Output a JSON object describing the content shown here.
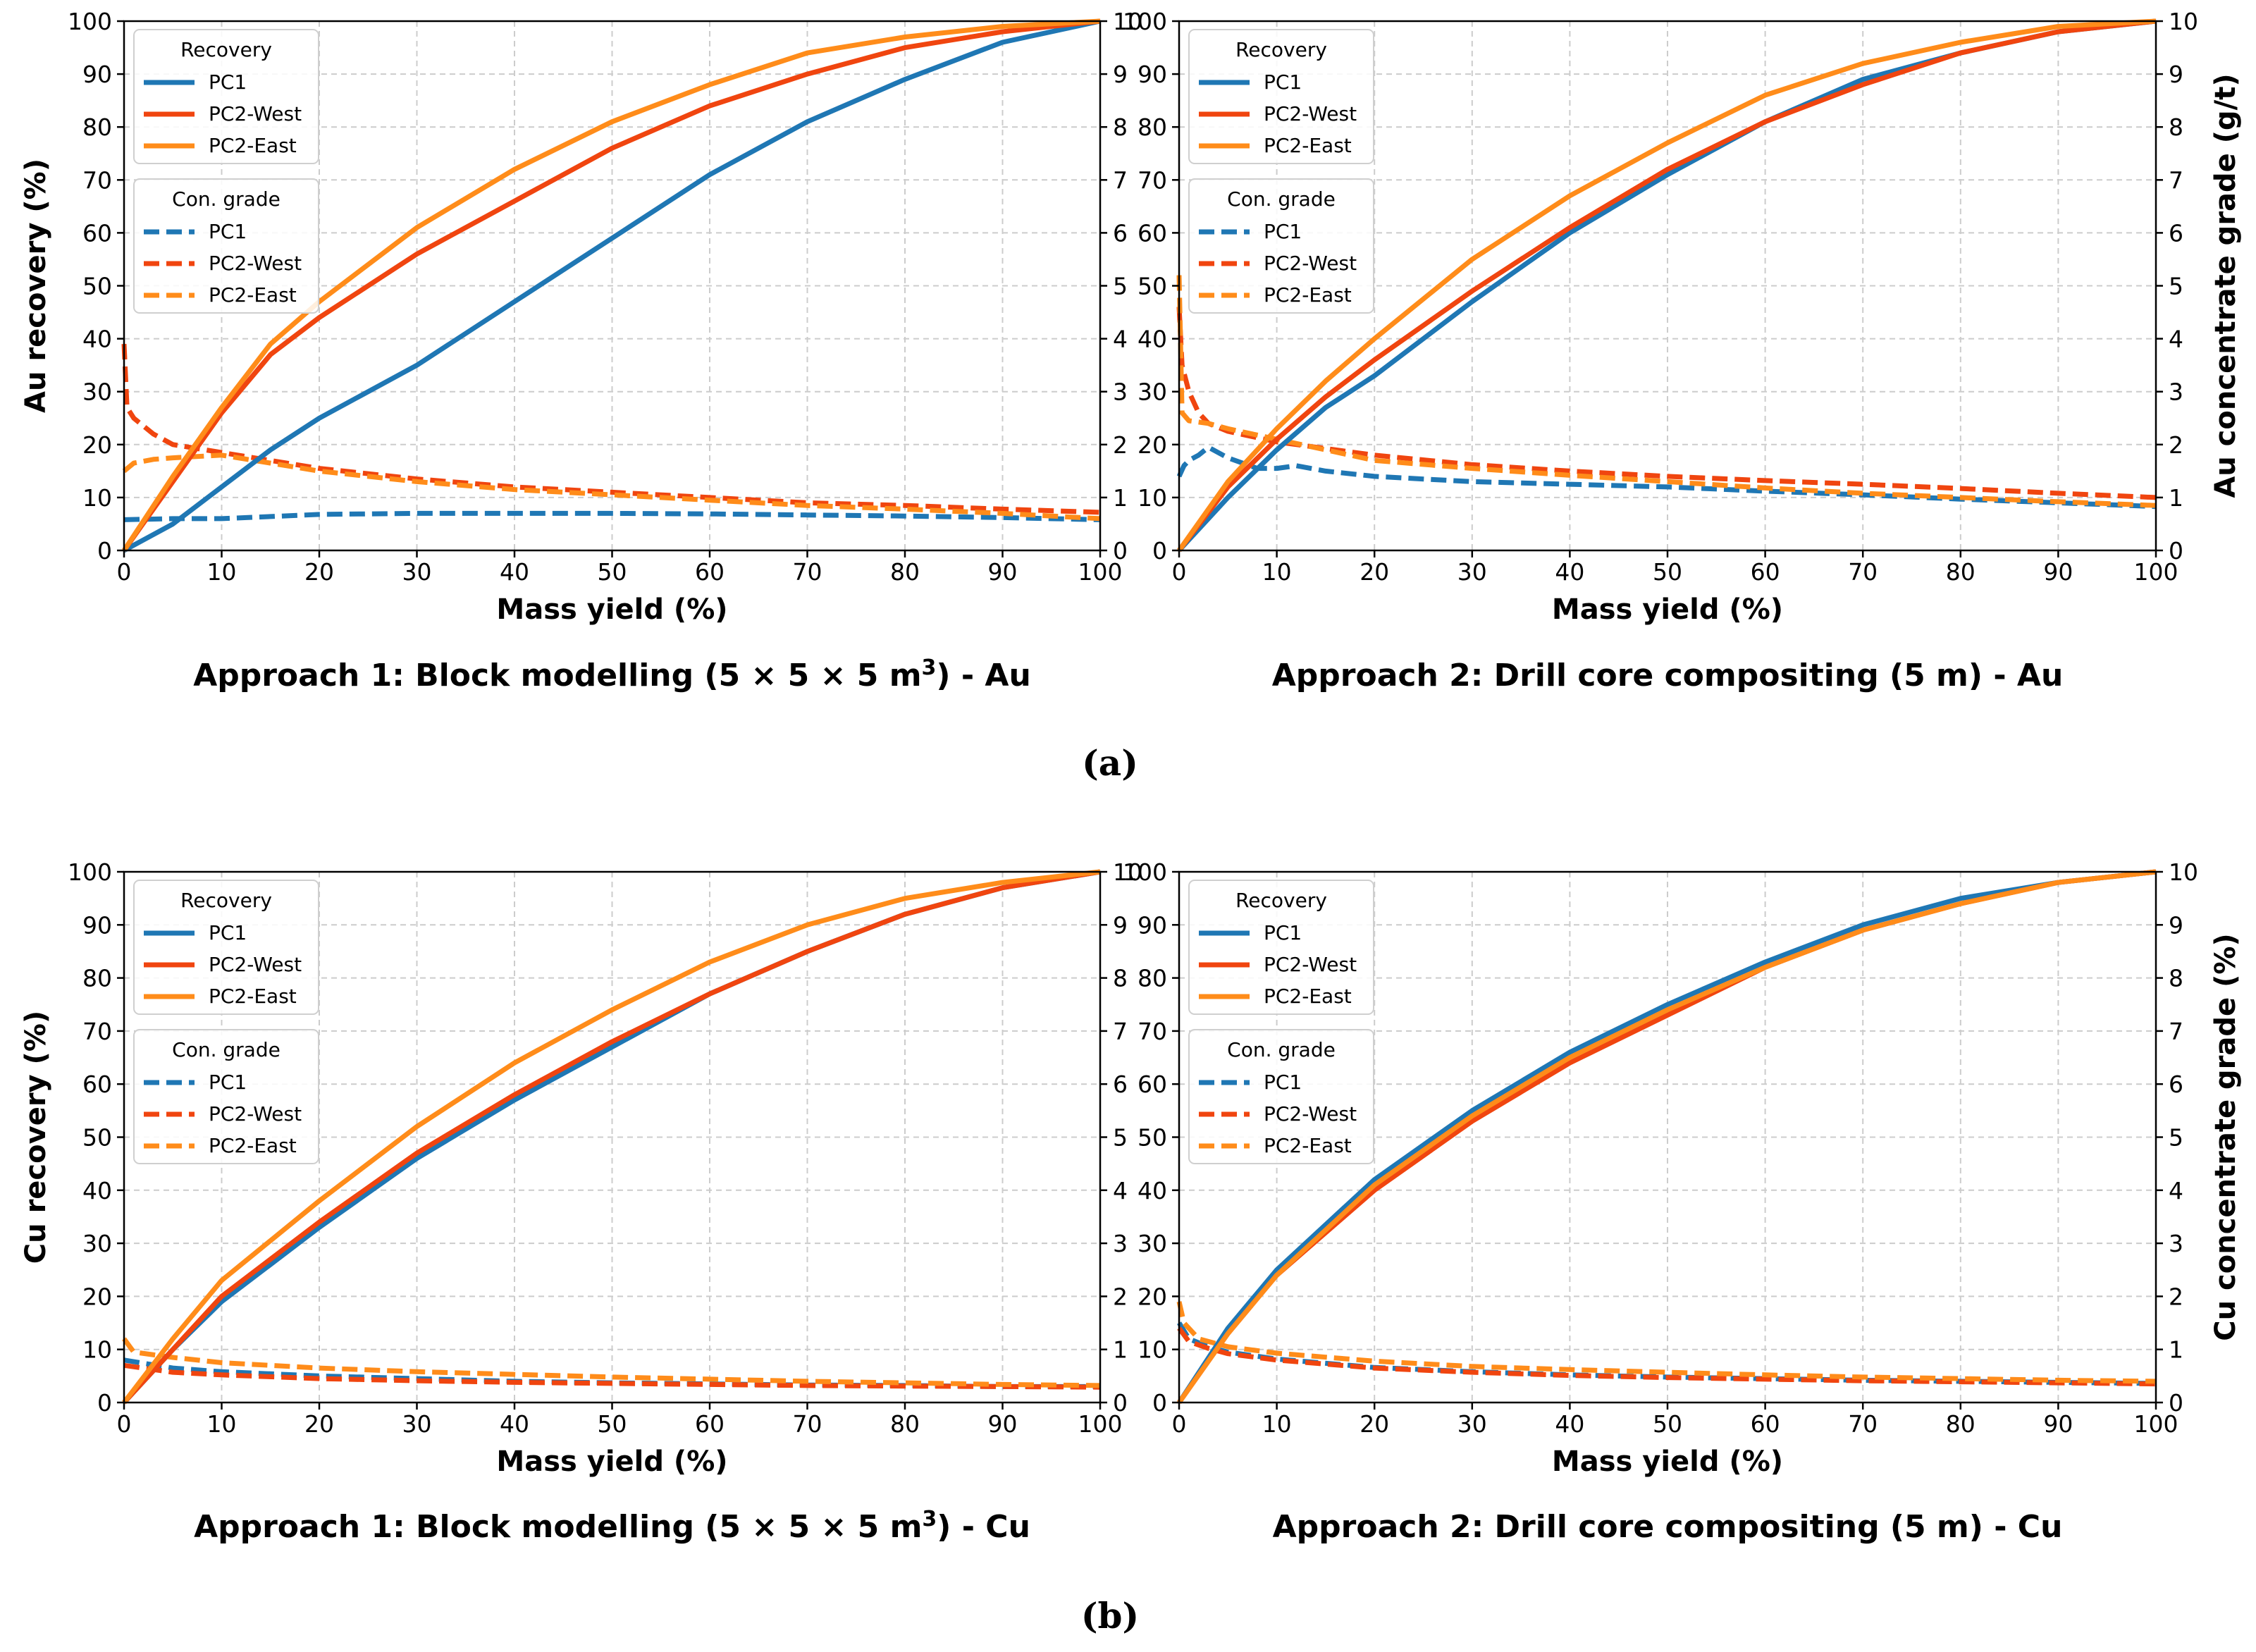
{
  "figure_labels": [
    "(a)",
    "(b)"
  ],
  "colors": {
    "PC1": "#1f77b4",
    "PC2-West": "#f0450f",
    "PC2-East": "#ff8c1a",
    "grid": "#cccccc"
  },
  "chart_data": [
    {
      "type": "line",
      "caption": "Approach 1: Block modelling (5 × 5 × 5 m³) - Au",
      "caption_parts": {
        "main": "Approach 1: Block modelling (5 × 5 × 5 m",
        "sup": "3",
        "end": ") - Au"
      },
      "xlabel": "Mass yield (%)",
      "ylabel": "Au recovery (%)",
      "y2label": "",
      "xlim": [
        0,
        100
      ],
      "ylim": [
        0,
        100
      ],
      "y2lim": [
        0,
        10
      ],
      "xticks": [
        "0",
        "10",
        "20",
        "30",
        "40",
        "50",
        "60",
        "70",
        "80",
        "90",
        "100"
      ],
      "yticks": [
        "0",
        "10",
        "20",
        "30",
        "40",
        "50",
        "60",
        "70",
        "80",
        "90",
        "100"
      ],
      "y2ticks": [
        "0",
        "1",
        "2",
        "3",
        "4",
        "5",
        "6",
        "7",
        "8",
        "9",
        "10"
      ],
      "grid": true,
      "legend_position": "top-left",
      "legend": {
        "recovery_title": "Recovery",
        "grade_title": "Con. grade",
        "entries": [
          "PC1",
          "PC2-West",
          "PC2-East"
        ]
      },
      "recovery_series": [
        {
          "name": "PC1",
          "x": [
            0,
            5,
            10,
            15,
            20,
            30,
            40,
            50,
            60,
            70,
            80,
            90,
            100
          ],
          "y": [
            0,
            5,
            12,
            19,
            25,
            35,
            47,
            59,
            71,
            81,
            89,
            96,
            100
          ]
        },
        {
          "name": "PC2-West",
          "x": [
            0,
            5,
            10,
            15,
            20,
            30,
            40,
            50,
            60,
            70,
            80,
            90,
            100
          ],
          "y": [
            0,
            13,
            26,
            37,
            44,
            56,
            66,
            76,
            84,
            90,
            95,
            98,
            100
          ]
        },
        {
          "name": "PC2-East",
          "x": [
            0,
            5,
            10,
            15,
            20,
            30,
            40,
            50,
            60,
            70,
            80,
            90,
            100
          ],
          "y": [
            0,
            14,
            27,
            39,
            47,
            61,
            72,
            81,
            88,
            94,
            97,
            99,
            100
          ]
        }
      ],
      "grade_series": [
        {
          "name": "PC1",
          "x": [
            0,
            5,
            10,
            20,
            30,
            40,
            50,
            60,
            70,
            80,
            90,
            100
          ],
          "y": [
            0.58,
            0.6,
            0.6,
            0.68,
            0.7,
            0.7,
            0.7,
            0.69,
            0.67,
            0.65,
            0.62,
            0.58
          ]
        },
        {
          "name": "PC2-West",
          "x": [
            0,
            0.3,
            1,
            3,
            5,
            10,
            20,
            30,
            40,
            50,
            60,
            70,
            80,
            90,
            100
          ],
          "y": [
            3.9,
            2.7,
            2.5,
            2.2,
            2.0,
            1.85,
            1.55,
            1.35,
            1.2,
            1.1,
            1.0,
            0.9,
            0.85,
            0.78,
            0.72
          ]
        },
        {
          "name": "PC2-East",
          "x": [
            0,
            1,
            3,
            5,
            10,
            20,
            30,
            40,
            50,
            60,
            70,
            80,
            90,
            100
          ],
          "y": [
            1.5,
            1.65,
            1.72,
            1.75,
            1.8,
            1.5,
            1.3,
            1.15,
            1.05,
            0.95,
            0.85,
            0.78,
            0.7,
            0.6
          ]
        }
      ]
    },
    {
      "type": "line",
      "caption": "Approach 2: Drill core compositing (5 m) - Au",
      "caption_parts": {
        "main": "Approach 2: Drill core compositing (5 m) - Au",
        "sup": "",
        "end": ""
      },
      "xlabel": "Mass yield (%)",
      "ylabel": "",
      "y2label": "Au concentrate grade (g/t)",
      "xlim": [
        0,
        100
      ],
      "ylim": [
        0,
        100
      ],
      "y2lim": [
        0,
        10
      ],
      "xticks": [
        "0",
        "10",
        "20",
        "30",
        "40",
        "50",
        "60",
        "70",
        "80",
        "90",
        "100"
      ],
      "yticks": [
        "0",
        "10",
        "20",
        "30",
        "40",
        "50",
        "60",
        "70",
        "80",
        "90",
        "100"
      ],
      "y2ticks": [
        "0",
        "1",
        "2",
        "3",
        "4",
        "5",
        "6",
        "7",
        "8",
        "9",
        "10"
      ],
      "grid": true,
      "legend_position": "top-left",
      "legend": {
        "recovery_title": "Recovery",
        "grade_title": "Con. grade",
        "entries": [
          "PC1",
          "PC2-West",
          "PC2-East"
        ]
      },
      "recovery_series": [
        {
          "name": "PC1",
          "x": [
            0,
            5,
            10,
            15,
            20,
            30,
            40,
            50,
            60,
            70,
            80,
            90,
            100
          ],
          "y": [
            0,
            10,
            19,
            27,
            33,
            47,
            60,
            71,
            81,
            89,
            94,
            98,
            100
          ]
        },
        {
          "name": "PC2-West",
          "x": [
            0,
            5,
            10,
            15,
            20,
            30,
            40,
            50,
            60,
            70,
            80,
            90,
            100
          ],
          "y": [
            0,
            12,
            21,
            29,
            36,
            49,
            61,
            72,
            81,
            88,
            94,
            98,
            100
          ]
        },
        {
          "name": "PC2-East",
          "x": [
            0,
            5,
            10,
            15,
            20,
            30,
            40,
            50,
            60,
            70,
            80,
            90,
            100
          ],
          "y": [
            0,
            13,
            23,
            32,
            40,
            55,
            67,
            77,
            86,
            92,
            96,
            99,
            100
          ]
        }
      ],
      "grade_series": [
        {
          "name": "PC1",
          "x": [
            0,
            0.5,
            1,
            2,
            3,
            5,
            8,
            10,
            12,
            15,
            20,
            30,
            40,
            50,
            60,
            70,
            80,
            90,
            100
          ],
          "y": [
            1.4,
            1.6,
            1.7,
            1.8,
            1.95,
            1.75,
            1.55,
            1.55,
            1.6,
            1.5,
            1.4,
            1.3,
            1.25,
            1.2,
            1.12,
            1.05,
            0.97,
            0.9,
            0.83
          ]
        },
        {
          "name": "PC2-West",
          "x": [
            0,
            0.3,
            1,
            2,
            3,
            5,
            10,
            20,
            30,
            40,
            50,
            60,
            70,
            80,
            90,
            100
          ],
          "y": [
            4.6,
            3.5,
            3.0,
            2.6,
            2.4,
            2.25,
            2.05,
            1.8,
            1.62,
            1.5,
            1.4,
            1.32,
            1.25,
            1.17,
            1.08,
            1.0
          ]
        },
        {
          "name": "PC2-East",
          "x": [
            0,
            0.3,
            1,
            3,
            5,
            10,
            20,
            30,
            40,
            50,
            60,
            70,
            80,
            90,
            100
          ],
          "y": [
            5.2,
            2.6,
            2.45,
            2.4,
            2.3,
            2.1,
            1.7,
            1.55,
            1.42,
            1.3,
            1.18,
            1.08,
            1.0,
            0.92,
            0.85
          ]
        }
      ]
    },
    {
      "type": "line",
      "caption": "Approach 1: Block modelling (5 × 5 × 5 m³) - Cu",
      "caption_parts": {
        "main": "Approach 1: Block modelling (5 × 5 × 5 m",
        "sup": "3",
        "end": ") - Cu"
      },
      "xlabel": "Mass yield (%)",
      "ylabel": "Cu recovery (%)",
      "y2label": "",
      "xlim": [
        0,
        100
      ],
      "ylim": [
        0,
        100
      ],
      "y2lim": [
        0,
        10
      ],
      "xticks": [
        "0",
        "10",
        "20",
        "30",
        "40",
        "50",
        "60",
        "70",
        "80",
        "90",
        "100"
      ],
      "yticks": [
        "0",
        "10",
        "20",
        "30",
        "40",
        "50",
        "60",
        "70",
        "80",
        "90",
        "100"
      ],
      "y2ticks": [
        "0",
        "1",
        "2",
        "3",
        "4",
        "5",
        "6",
        "7",
        "8",
        "9",
        "10"
      ],
      "grid": true,
      "legend_position": "top-left",
      "legend": {
        "recovery_title": "Recovery",
        "grade_title": "Con. grade",
        "entries": [
          "PC1",
          "PC2-West",
          "PC2-East"
        ]
      },
      "recovery_series": [
        {
          "name": "PC1",
          "x": [
            0,
            5,
            10,
            20,
            30,
            40,
            50,
            60,
            70,
            80,
            90,
            100
          ],
          "y": [
            0,
            10,
            19,
            33,
            46,
            57,
            67,
            77,
            85,
            92,
            97,
            100
          ]
        },
        {
          "name": "PC2-West",
          "x": [
            0,
            5,
            10,
            20,
            30,
            40,
            50,
            60,
            70,
            80,
            90,
            100
          ],
          "y": [
            0,
            10,
            20,
            34,
            47,
            58,
            68,
            77,
            85,
            92,
            97,
            100
          ]
        },
        {
          "name": "PC2-East",
          "x": [
            0,
            5,
            10,
            20,
            30,
            40,
            50,
            60,
            70,
            80,
            90,
            100
          ],
          "y": [
            0,
            12,
            23,
            38,
            52,
            64,
            74,
            83,
            90,
            95,
            98,
            100
          ]
        }
      ],
      "grade_series": [
        {
          "name": "PC1",
          "x": [
            0,
            5,
            10,
            20,
            30,
            40,
            50,
            60,
            70,
            80,
            90,
            100
          ],
          "y": [
            0.8,
            0.65,
            0.58,
            0.5,
            0.45,
            0.4,
            0.37,
            0.35,
            0.33,
            0.32,
            0.3,
            0.3
          ]
        },
        {
          "name": "PC2-West",
          "x": [
            0,
            5,
            10,
            20,
            30,
            40,
            50,
            60,
            70,
            80,
            90,
            100
          ],
          "y": [
            0.7,
            0.57,
            0.52,
            0.45,
            0.41,
            0.38,
            0.36,
            0.34,
            0.32,
            0.31,
            0.3,
            0.29
          ]
        },
        {
          "name": "PC2-East",
          "x": [
            0,
            1,
            5,
            10,
            20,
            30,
            40,
            50,
            60,
            70,
            80,
            90,
            100
          ],
          "y": [
            1.2,
            0.95,
            0.85,
            0.75,
            0.65,
            0.58,
            0.53,
            0.48,
            0.44,
            0.4,
            0.37,
            0.34,
            0.32
          ]
        }
      ]
    },
    {
      "type": "line",
      "caption": "Approach 2: Drill core compositing (5 m) - Cu",
      "caption_parts": {
        "main": "Approach 2: Drill core compositing (5 m) - Cu",
        "sup": "",
        "end": ""
      },
      "xlabel": "Mass yield (%)",
      "ylabel": "",
      "y2label": "Cu concentrate grade (%)",
      "xlim": [
        0,
        100
      ],
      "ylim": [
        0,
        100
      ],
      "y2lim": [
        0,
        10
      ],
      "xticks": [
        "0",
        "10",
        "20",
        "30",
        "40",
        "50",
        "60",
        "70",
        "80",
        "90",
        "100"
      ],
      "yticks": [
        "0",
        "10",
        "20",
        "30",
        "40",
        "50",
        "60",
        "70",
        "80",
        "90",
        "100"
      ],
      "y2ticks": [
        "0",
        "1",
        "2",
        "3",
        "4",
        "5",
        "6",
        "7",
        "8",
        "9",
        "10"
      ],
      "grid": true,
      "legend_position": "top-left",
      "legend": {
        "recovery_title": "Recovery",
        "grade_title": "Con. grade",
        "entries": [
          "PC1",
          "PC2-West",
          "PC2-East"
        ]
      },
      "recovery_series": [
        {
          "name": "PC1",
          "x": [
            0,
            5,
            10,
            20,
            30,
            40,
            50,
            60,
            70,
            80,
            90,
            100
          ],
          "y": [
            0,
            14,
            25,
            42,
            55,
            66,
            75,
            83,
            90,
            95,
            98,
            100
          ]
        },
        {
          "name": "PC2-West",
          "x": [
            0,
            5,
            10,
            20,
            30,
            40,
            50,
            60,
            70,
            80,
            90,
            100
          ],
          "y": [
            0,
            13,
            24,
            40,
            53,
            64,
            73,
            82,
            89,
            94,
            98,
            100
          ]
        },
        {
          "name": "PC2-East",
          "x": [
            0,
            5,
            10,
            20,
            30,
            40,
            50,
            60,
            70,
            80,
            90,
            100
          ],
          "y": [
            0,
            13,
            24,
            41,
            54,
            65,
            74,
            82,
            89,
            94,
            98,
            100
          ]
        }
      ],
      "grade_series": [
        {
          "name": "PC1",
          "x": [
            0,
            1,
            3,
            5,
            10,
            20,
            30,
            40,
            50,
            60,
            70,
            80,
            90,
            100
          ],
          "y": [
            1.5,
            1.2,
            1.05,
            0.95,
            0.82,
            0.66,
            0.58,
            0.52,
            0.48,
            0.45,
            0.42,
            0.4,
            0.38,
            0.36
          ]
        },
        {
          "name": "PC2-West",
          "x": [
            0,
            1,
            3,
            5,
            10,
            20,
            30,
            40,
            50,
            60,
            70,
            80,
            90,
            100
          ],
          "y": [
            1.4,
            1.15,
            1.02,
            0.92,
            0.8,
            0.65,
            0.57,
            0.51,
            0.47,
            0.44,
            0.41,
            0.39,
            0.37,
            0.35
          ]
        },
        {
          "name": "PC2-East",
          "x": [
            0,
            0.5,
            2,
            5,
            10,
            20,
            30,
            40,
            50,
            60,
            70,
            80,
            90,
            100
          ],
          "y": [
            1.9,
            1.5,
            1.2,
            1.05,
            0.93,
            0.78,
            0.68,
            0.62,
            0.57,
            0.52,
            0.48,
            0.45,
            0.42,
            0.4
          ]
        }
      ]
    }
  ]
}
